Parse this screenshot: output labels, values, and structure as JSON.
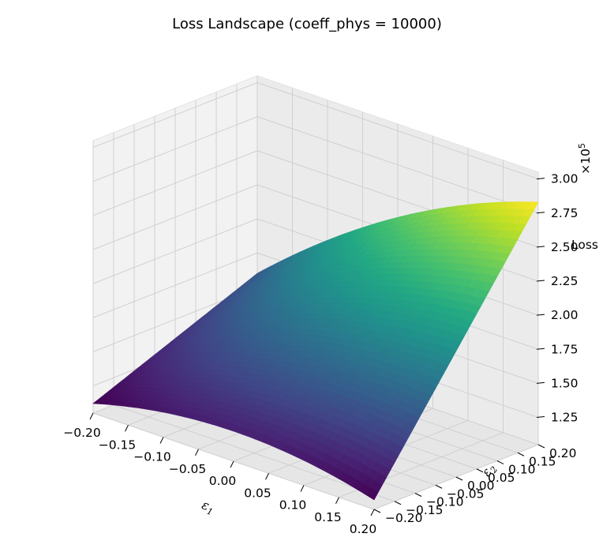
{
  "chart_data": {
    "type": "surface",
    "title": "Loss Landscape (coeff_phys = 10000)",
    "xlabel": "ε1",
    "ylabel": "ε2",
    "zlabel": "Loss",
    "z_multiplier": "×10^5",
    "colormap": "viridis",
    "xlim": [
      -0.2,
      0.2
    ],
    "ylim": [
      -0.2,
      0.2
    ],
    "zlim": [
      1.05,
      3.05
    ],
    "x_ticks": [
      "−0.20",
      "−0.15",
      "−0.10",
      "−0.05",
      "0.00",
      "0.05",
      "0.10",
      "0.15",
      "0.20"
    ],
    "y_ticks": [
      "−0.20",
      "−0.15",
      "−0.10",
      "−0.05",
      "0.00",
      "0.05",
      "0.10",
      "0.15",
      "0.20"
    ],
    "z_ticks": [
      "1.25",
      "1.50",
      "1.75",
      "2.00",
      "2.25",
      "2.50",
      "2.75",
      "3.00"
    ],
    "corner_values_x1e5": {
      "x_min_y_min": 1.27,
      "x_max_y_min": 1.27,
      "x_min_y_max": 1.75,
      "x_max_y_max": 2.98,
      "minimum": 1.12
    },
    "colors": {
      "pane": "#f2f2f2",
      "grid": "#d0d0d0",
      "viridis_low": "#440154",
      "viridis_high": "#fde725"
    }
  }
}
